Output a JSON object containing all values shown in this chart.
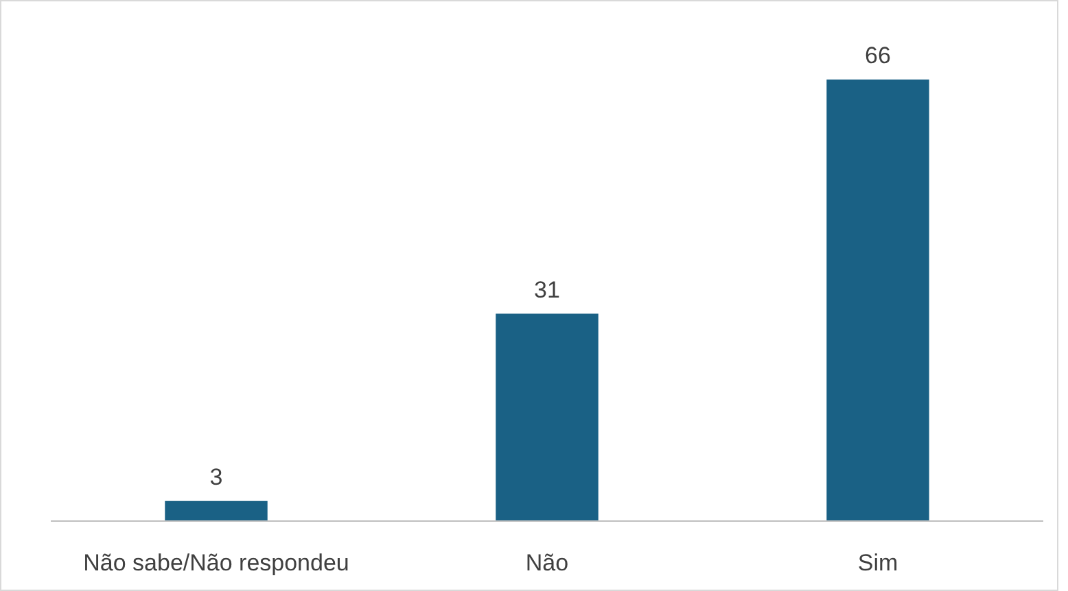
{
  "chart_data": {
    "type": "bar",
    "categories": [
      "Não sabe/Não respondeu",
      "Não",
      "Sim"
    ],
    "values": [
      3,
      31,
      66
    ],
    "color": "#1a6185",
    "data_labels": true
  }
}
